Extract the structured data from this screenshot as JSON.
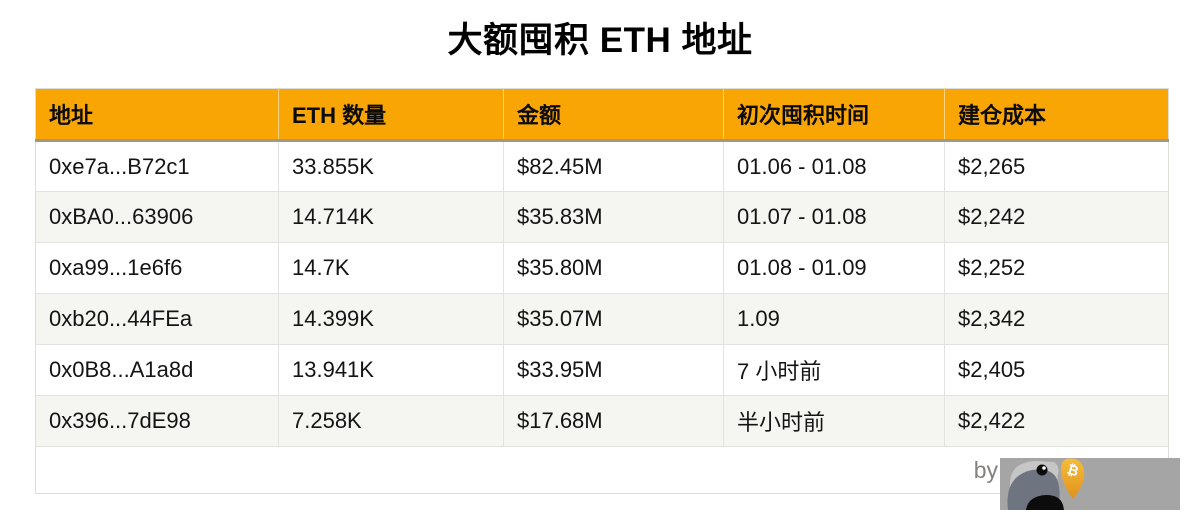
{
  "title": "大额囤积 ETH 地址",
  "chart_data": {
    "type": "table",
    "title": "大额囤积 ETH 地址",
    "columns": [
      "地址",
      "ETH 数量",
      "金额",
      "初次囤积时间",
      "建仓成本"
    ],
    "rows": [
      [
        "0xe7a...B72c1",
        "33.855K",
        "$82.45M",
        "01.06 - 01.08",
        "$2,265"
      ],
      [
        "0xBA0...63906",
        "14.714K",
        "$35.83M",
        "01.07 - 01.08",
        "$2,242"
      ],
      [
        "0xa99...1e6f6",
        "14.7K",
        "$35.80M",
        "01.08 - 01.09",
        "$2,252"
      ],
      [
        "0xb20...44FEa",
        "14.399K",
        "$35.07M",
        "1.09",
        "$2,342"
      ],
      [
        "0x0B8...A1a8d",
        "13.941K",
        "$33.95M",
        "7 小时前",
        "$2,405"
      ],
      [
        "0x396...7dE98",
        "7.258K",
        "$17.68M",
        "半小时前",
        "$2,422"
      ]
    ],
    "layout_hints": {
      "header_style": "orange filled header row, black bold text",
      "row_striping": "white / light-gray alternating",
      "grid": "light gray cell borders"
    }
  },
  "footer": {
    "byline": "by"
  },
  "logo": {
    "icon": "bird-with-bitcoin-beak",
    "bitcoin_symbol": "₿"
  },
  "colors": {
    "header_bg": "#F9A504",
    "header_border": "#A39782",
    "row_alt_bg": "#F5F5F2",
    "grid_line": "#E3E2DE",
    "text_main": "#141414",
    "byline_color": "#82817D",
    "logo_bg": "#A5A5A5",
    "beak_gold": "#EFA428"
  },
  "cell_names": [
    "address-cell",
    "eth-amount-cell",
    "usd-value-cell",
    "first-accumulation-time-cell",
    "cost-basis-cell"
  ]
}
